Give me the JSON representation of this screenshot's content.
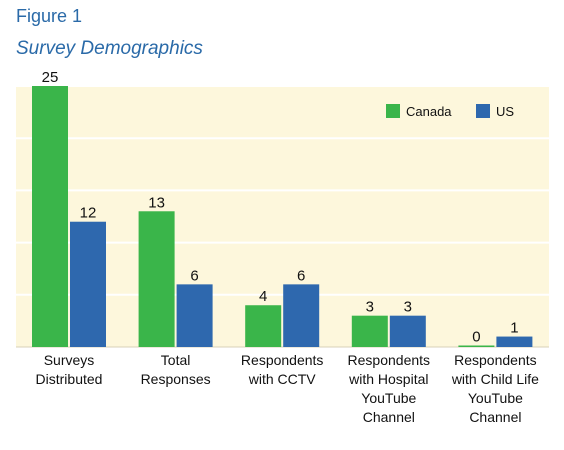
{
  "figure_label": "Figure 1",
  "chart_data": {
    "type": "bar",
    "title": "Survey Demographics",
    "categories": [
      "Surveys Distributed",
      "Total Responses",
      "Respondents with CCTV",
      "Respondents with Hospital YouTube Channel",
      "Respondents with Child Life YouTube Channel"
    ],
    "category_lines": [
      [
        "Surveys",
        "Distributed"
      ],
      [
        "Total",
        "Responses"
      ],
      [
        "Respondents",
        "with CCTV"
      ],
      [
        "Respondents",
        "with Hospital",
        "YouTube",
        "Channel"
      ],
      [
        "Respondents",
        "with Child Life",
        "YouTube",
        "Channel"
      ]
    ],
    "series": [
      {
        "name": "Canada",
        "color": "#3ab54a",
        "values": [
          25,
          13,
          4,
          3,
          0
        ]
      },
      {
        "name": "US",
        "color": "#2e68ae",
        "values": [
          12,
          6,
          6,
          3,
          1
        ]
      }
    ],
    "ylim": [
      0,
      25
    ],
    "grid": true,
    "legend_position": "top-right",
    "plot_background": "#fdf7dc",
    "xlabel": "",
    "ylabel": ""
  }
}
